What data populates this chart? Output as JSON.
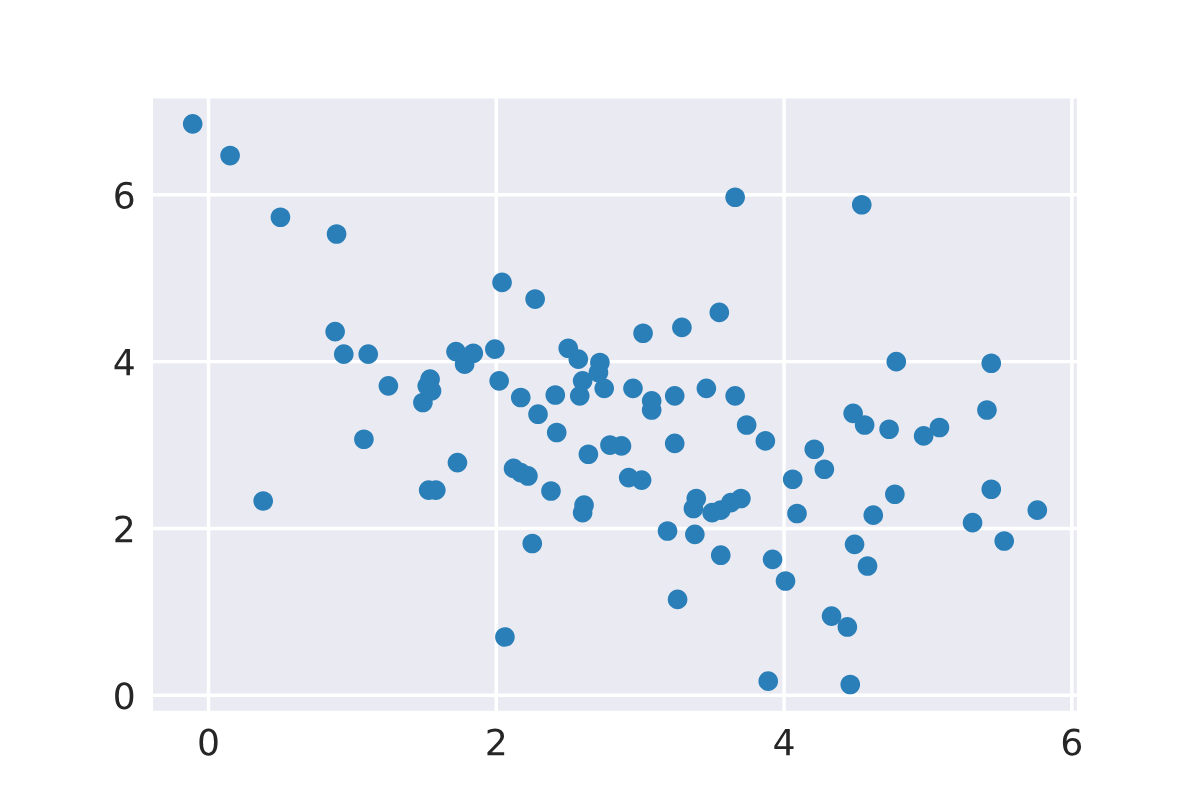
{
  "chart_data": {
    "type": "scatter",
    "xlim": [
      -0.39,
      6.04
    ],
    "ylim": [
      -0.19,
      7.16
    ],
    "xticks": [
      0,
      2,
      4,
      6
    ],
    "yticks": [
      0,
      2,
      4,
      6
    ],
    "grid": true,
    "marker": "circle",
    "series": [
      {
        "color": "#2a7fb8",
        "x": [
          -0.11,
          0.15,
          0.5,
          0.89,
          0.88,
          0.94,
          1.11,
          0.38,
          1.08,
          1.25,
          1.49,
          1.52,
          1.54,
          1.55,
          1.53,
          1.58,
          1.73,
          1.72,
          1.78,
          1.84,
          1.99,
          2.04,
          2.02,
          2.06,
          2.12,
          2.17,
          2.22,
          2.17,
          2.27,
          2.29,
          2.25,
          2.38,
          2.41,
          2.42,
          2.5,
          2.57,
          2.6,
          2.58,
          2.61,
          2.6,
          2.64,
          2.72,
          2.71,
          2.75,
          2.79,
          2.87,
          2.92,
          2.95,
          3.01,
          3.02,
          3.08,
          3.08,
          3.19,
          3.24,
          3.24,
          3.26,
          3.29,
          3.38,
          3.37,
          3.39,
          3.46,
          3.5,
          3.56,
          3.56,
          3.55,
          3.63,
          3.66,
          3.66,
          3.7,
          3.74,
          3.87,
          3.89,
          3.92,
          4.01,
          4.06,
          4.09,
          4.21,
          4.28,
          4.33,
          4.44,
          4.46,
          4.49,
          4.48,
          4.54,
          4.56,
          4.58,
          4.62,
          4.73,
          4.77,
          4.78,
          4.97,
          5.08,
          5.31,
          5.41,
          5.44,
          5.44,
          5.53,
          5.76
        ],
        "values": [
          6.85,
          6.47,
          5.73,
          5.53,
          4.36,
          4.09,
          4.09,
          2.33,
          3.07,
          3.71,
          3.51,
          3.71,
          3.79,
          3.65,
          2.46,
          2.46,
          2.79,
          4.12,
          3.97,
          4.1,
          4.15,
          4.95,
          3.77,
          0.7,
          2.72,
          2.67,
          2.63,
          3.57,
          4.75,
          3.37,
          1.82,
          2.45,
          3.6,
          3.15,
          4.16,
          4.03,
          3.77,
          3.59,
          2.28,
          2.19,
          2.89,
          3.99,
          3.87,
          3.68,
          3.0,
          2.99,
          2.61,
          3.68,
          2.58,
          4.34,
          3.53,
          3.42,
          1.97,
          3.02,
          3.59,
          1.15,
          4.41,
          1.93,
          2.24,
          2.36,
          3.68,
          2.19,
          2.22,
          1.68,
          4.59,
          2.31,
          3.59,
          5.97,
          2.36,
          3.24,
          3.05,
          0.17,
          1.63,
          1.37,
          2.59,
          2.18,
          2.95,
          2.71,
          0.95,
          0.82,
          0.13,
          1.81,
          3.38,
          5.88,
          3.24,
          1.55,
          2.16,
          3.19,
          2.41,
          4.0,
          3.11,
          3.21,
          2.07,
          3.42,
          2.47,
          3.98,
          1.85,
          2.22
        ]
      }
    ]
  }
}
